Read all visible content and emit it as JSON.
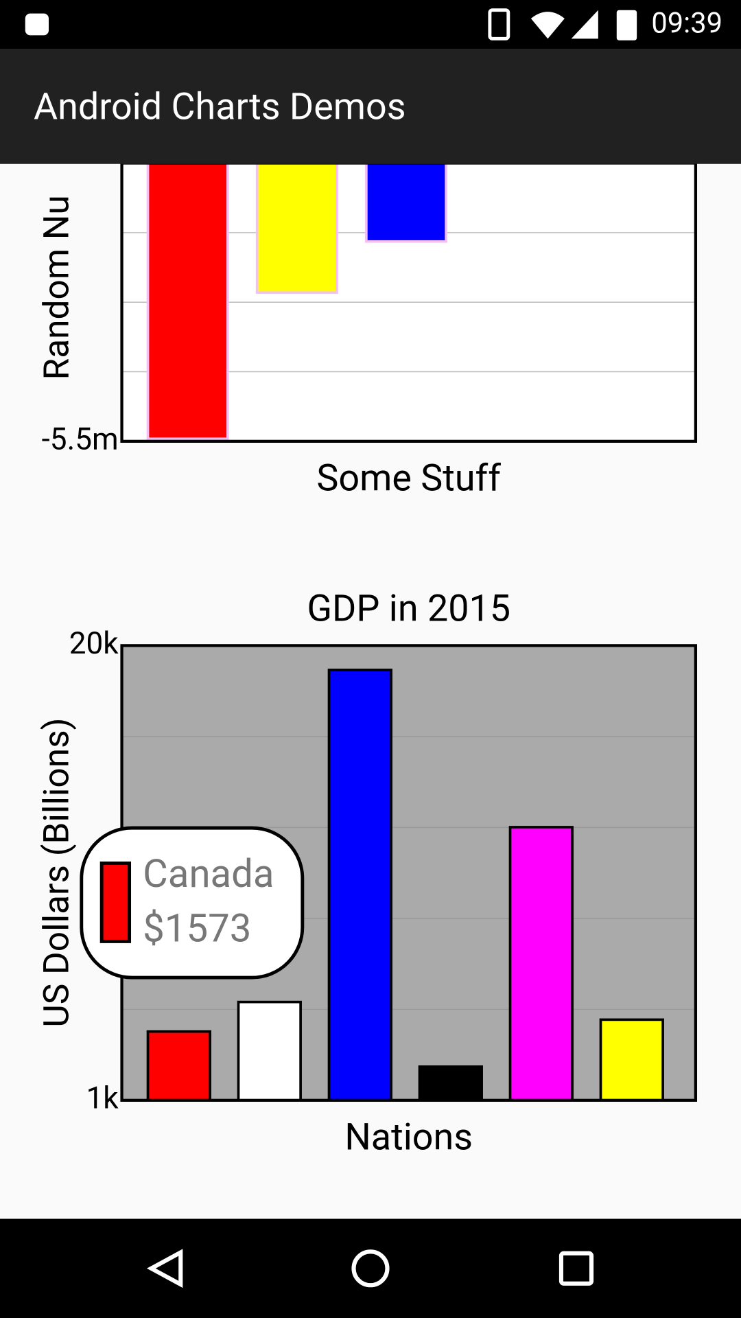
{
  "status_bar": {
    "time": "09:39"
  },
  "app_bar": {
    "title": "Android Charts Demos"
  },
  "chart_data": [
    {
      "type": "bar",
      "y_label": "Random Nu",
      "x_label": "Some Stuff",
      "categories": [
        null,
        null,
        null
      ],
      "values": [
        -5.45,
        -2.56,
        -1.55
      ],
      "colors": [
        "#ff0000",
        "#ffff00",
        "#0000ff"
      ],
      "ylim": [
        -5.5,
        0
      ],
      "yticks": [
        {
          "value": -5.5,
          "label": "-5.5m"
        },
        {
          "value": -4.125,
          "label": null
        },
        {
          "value": -2.75,
          "label": null
        },
        {
          "value": -1.375,
          "label": null
        }
      ],
      "grid": true
    },
    {
      "type": "bar",
      "title": "GDP in 2015",
      "y_label": "US Dollars (Billions)",
      "x_label": "Nations",
      "log_scale": true,
      "categories": [
        "Canada",
        null,
        null,
        null,
        null,
        null
      ],
      "values": [
        1573,
        1911,
        17030,
        1248,
        6046,
        1701
      ],
      "value_labels": [
        "$1573",
        null,
        null,
        null,
        null,
        null
      ],
      "colors": [
        "#ff0000",
        "#ffffff",
        "#0000ff",
        "#000000",
        "#ff00ff",
        "#ffff00"
      ],
      "ylim": [
        1000,
        20000
      ],
      "yticks": [
        {
          "value": 1000,
          "label": "1k"
        },
        {
          "value": 1820,
          "label": null
        },
        {
          "value": 3314,
          "label": null
        },
        {
          "value": 6034,
          "label": null
        },
        {
          "value": 10986,
          "label": null
        },
        {
          "value": 20000,
          "label": "20k"
        }
      ],
      "grid": true,
      "tooltip_index": 0
    }
  ]
}
